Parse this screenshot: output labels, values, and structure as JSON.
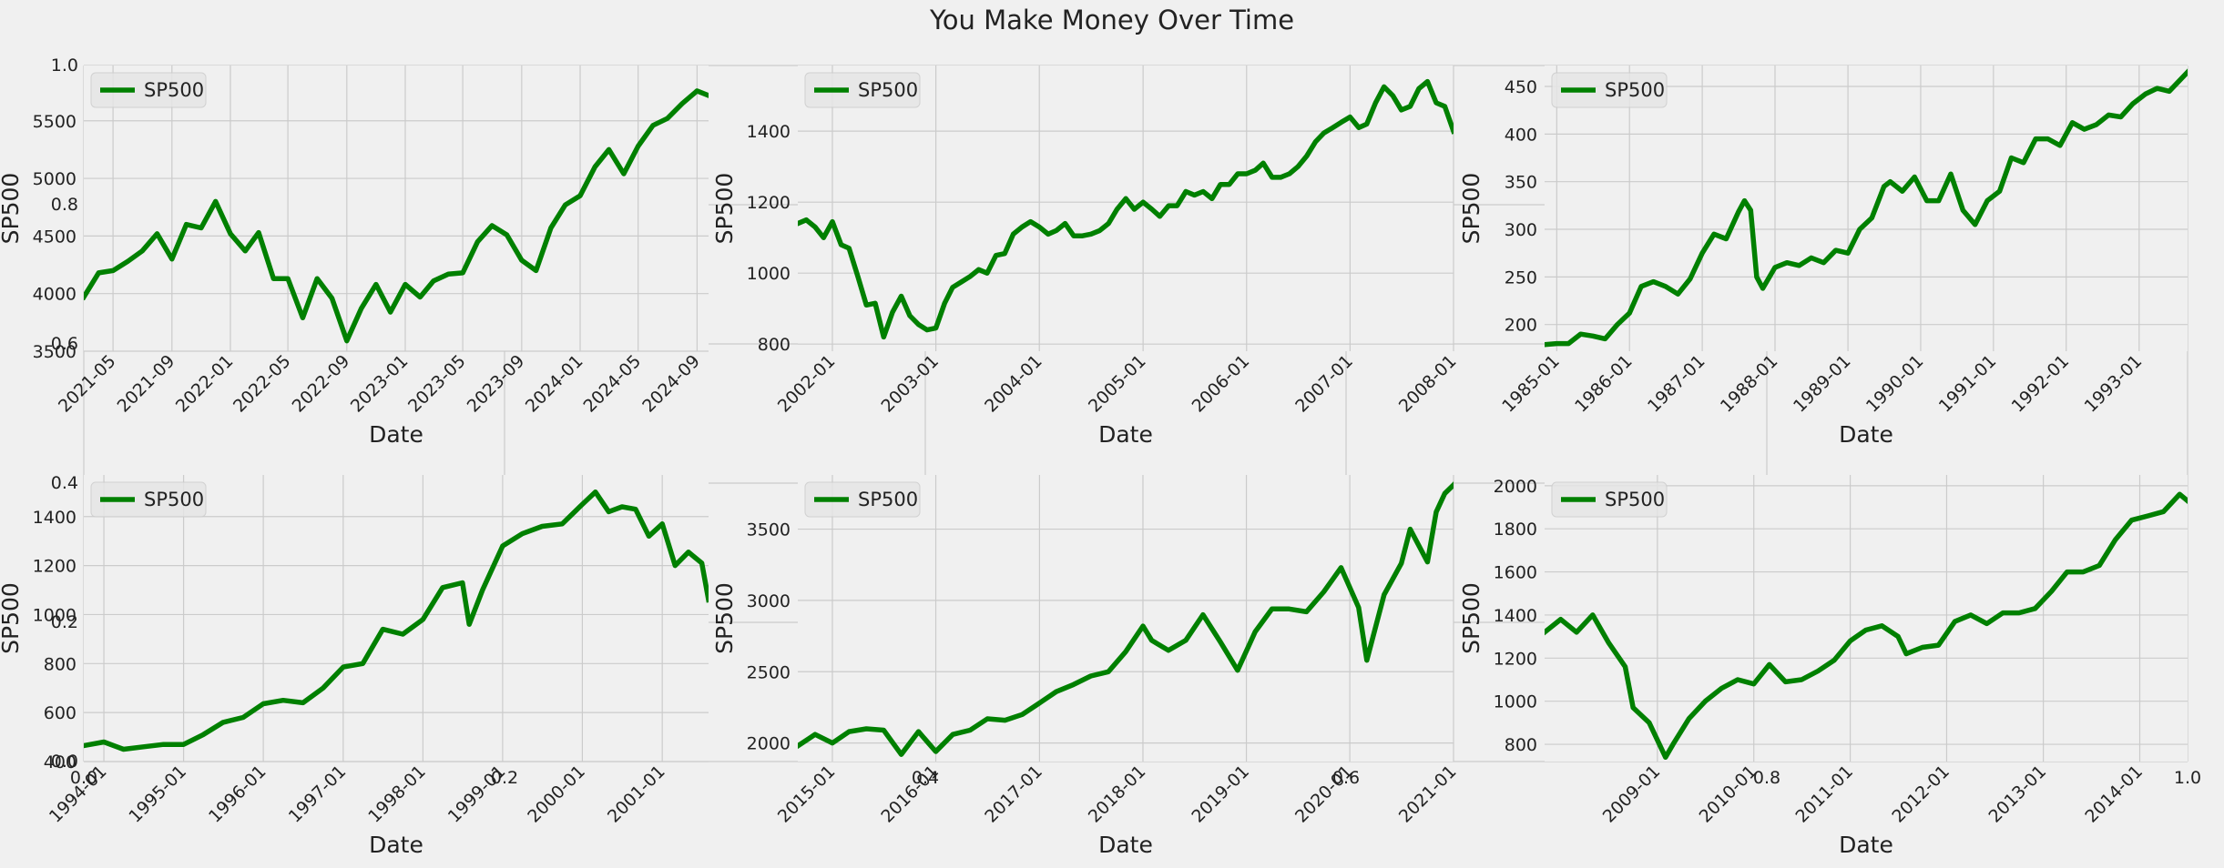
{
  "title": "You Make Money Over Time",
  "colors": {
    "background": "#f0f0f0",
    "grid": "#cbcbcb",
    "line": "#008000",
    "legend_bg": "#e6e6e6",
    "legend_border": "#cccccc"
  },
  "overlay_axes": {
    "x_ticks": [
      "0.0",
      "0.2",
      "0.4",
      "0.6",
      "0.8",
      "1.0"
    ],
    "y_ticks": [
      "0.0",
      "0.2",
      "0.4",
      "0.6",
      "0.8",
      "1.0"
    ]
  },
  "chart_data": [
    {
      "type": "line",
      "xlabel": "Date",
      "ylabel": "SP500",
      "xlim": [
        "2021-03-01",
        "2024-09-25"
      ],
      "ylim": [
        3500,
        5980
      ],
      "xticks": [
        "2021-05",
        "2021-09",
        "2022-01",
        "2022-05",
        "2022-09",
        "2023-01",
        "2023-05",
        "2023-09",
        "2024-01",
        "2024-05",
        "2024-09"
      ],
      "yticks": [
        3500,
        4000,
        4500,
        5000,
        5500
      ],
      "grid": true,
      "legend_loc": "upper left",
      "series": [
        {
          "name": "SP500",
          "x": [
            "2021-03-01",
            "2021-04-01",
            "2021-05-01",
            "2021-06-01",
            "2021-07-01",
            "2021-08-01",
            "2021-09-01",
            "2021-10-01",
            "2021-11-01",
            "2021-12-01",
            "2022-01-01",
            "2022-02-01",
            "2022-03-01",
            "2022-04-01",
            "2022-05-01",
            "2022-06-01",
            "2022-07-01",
            "2022-08-01",
            "2022-09-01",
            "2022-10-01",
            "2022-11-01",
            "2022-12-01",
            "2023-01-01",
            "2023-02-01",
            "2023-03-01",
            "2023-04-01",
            "2023-05-01",
            "2023-06-01",
            "2023-07-01",
            "2023-08-01",
            "2023-09-01",
            "2023-10-01",
            "2023-11-01",
            "2023-12-01",
            "2024-01-01",
            "2024-02-01",
            "2024-03-01",
            "2024-04-01",
            "2024-05-01",
            "2024-06-01",
            "2024-07-01",
            "2024-08-01",
            "2024-09-01",
            "2024-09-25"
          ],
          "y": [
            3970,
            4180,
            4200,
            4280,
            4370,
            4520,
            4300,
            4600,
            4570,
            4800,
            4520,
            4370,
            4530,
            4130,
            4130,
            3790,
            4130,
            3960,
            3590,
            3870,
            4080,
            3840,
            4080,
            3970,
            4110,
            4170,
            4180,
            4450,
            4590,
            4510,
            4290,
            4200,
            4570,
            4770,
            4850,
            5100,
            5250,
            5040,
            5280,
            5460,
            5520,
            5650,
            5760,
            5720
          ]
        }
      ]
    },
    {
      "type": "line",
      "xlabel": "Date",
      "ylabel": "SP500",
      "xlim": [
        "2001-09-01",
        "2008-01-01"
      ],
      "ylim": [
        780,
        1585
      ],
      "xticks": [
        "2002-01",
        "2003-01",
        "2004-01",
        "2005-01",
        "2006-01",
        "2007-01",
        "2008-01"
      ],
      "yticks": [
        800,
        1000,
        1200,
        1400
      ],
      "grid": true,
      "legend_loc": "upper left",
      "series": [
        {
          "name": "SP500",
          "x": [
            "2001-09-01",
            "2001-10-01",
            "2001-11-01",
            "2001-12-01",
            "2002-01-01",
            "2002-02-01",
            "2002-03-01",
            "2002-04-01",
            "2002-05-01",
            "2002-06-01",
            "2002-07-01",
            "2002-08-01",
            "2002-09-01",
            "2002-10-01",
            "2002-11-01",
            "2002-12-01",
            "2003-01-01",
            "2003-02-01",
            "2003-03-01",
            "2003-04-01",
            "2003-05-01",
            "2003-06-01",
            "2003-07-01",
            "2003-08-01",
            "2003-09-01",
            "2003-10-01",
            "2003-11-01",
            "2003-12-01",
            "2004-01-01",
            "2004-02-01",
            "2004-03-01",
            "2004-04-01",
            "2004-05-01",
            "2004-06-01",
            "2004-07-01",
            "2004-08-01",
            "2004-09-01",
            "2004-10-01",
            "2004-11-01",
            "2004-12-01",
            "2005-01-01",
            "2005-02-01",
            "2005-03-01",
            "2005-04-01",
            "2005-05-01",
            "2005-06-01",
            "2005-07-01",
            "2005-08-01",
            "2005-09-01",
            "2005-10-01",
            "2005-11-01",
            "2005-12-01",
            "2006-01-01",
            "2006-02-01",
            "2006-03-01",
            "2006-04-01",
            "2006-05-01",
            "2006-06-01",
            "2006-07-01",
            "2006-08-01",
            "2006-09-01",
            "2006-10-01",
            "2006-11-01",
            "2006-12-01",
            "2007-01-01",
            "2007-02-01",
            "2007-03-01",
            "2007-04-01",
            "2007-05-01",
            "2007-06-01",
            "2007-07-01",
            "2007-08-01",
            "2007-09-01",
            "2007-10-01",
            "2007-11-01",
            "2007-12-01",
            "2008-01-01"
          ],
          "y": [
            1140,
            1150,
            1130,
            1100,
            1145,
            1080,
            1070,
            990,
            910,
            915,
            820,
            890,
            935,
            880,
            855,
            840,
            845,
            915,
            960,
            975,
            990,
            1010,
            1000,
            1050,
            1055,
            1110,
            1130,
            1145,
            1130,
            1110,
            1120,
            1140,
            1105,
            1105,
            1110,
            1120,
            1140,
            1180,
            1210,
            1180,
            1200,
            1180,
            1160,
            1190,
            1190,
            1230,
            1220,
            1230,
            1210,
            1250,
            1250,
            1280,
            1280,
            1290,
            1310,
            1270,
            1270,
            1280,
            1300,
            1330,
            1370,
            1395,
            1410,
            1425,
            1440,
            1410,
            1420,
            1480,
            1525,
            1500,
            1460,
            1470,
            1520,
            1540,
            1480,
            1470,
            1400
          ]
        }
      ]
    },
    {
      "type": "line",
      "xlabel": "Date",
      "ylabel": "SP500",
      "xlim": [
        "1984-11-01",
        "1993-09-01"
      ],
      "ylim": [
        172,
        472
      ],
      "xticks": [
        "1985-01",
        "1986-01",
        "1987-01",
        "1988-01",
        "1989-01",
        "1990-01",
        "1991-01",
        "1992-01",
        "1993-01"
      ],
      "yticks": [
        200,
        250,
        300,
        350,
        400,
        450
      ],
      "grid": true,
      "legend_loc": "upper left",
      "series": [
        {
          "name": "SP500",
          "x": [
            "1984-11-01",
            "1985-01-01",
            "1985-03-01",
            "1985-05-01",
            "1985-07-01",
            "1985-09-01",
            "1985-11-01",
            "1986-01-01",
            "1986-03-01",
            "1986-05-01",
            "1986-07-01",
            "1986-09-01",
            "1986-11-01",
            "1987-01-01",
            "1987-03-01",
            "1987-05-01",
            "1987-07-01",
            "1987-08-01",
            "1987-09-01",
            "1987-10-01",
            "1987-11-01",
            "1988-01-01",
            "1988-03-01",
            "1988-05-01",
            "1988-07-01",
            "1988-09-01",
            "1988-11-01",
            "1989-01-01",
            "1989-03-01",
            "1989-05-01",
            "1989-07-01",
            "1989-08-01",
            "1989-10-01",
            "1989-12-01",
            "1990-02-01",
            "1990-04-01",
            "1990-06-01",
            "1990-08-01",
            "1990-10-01",
            "1990-12-01",
            "1991-02-01",
            "1991-04-01",
            "1991-06-01",
            "1991-08-01",
            "1991-10-01",
            "1991-12-01",
            "1992-02-01",
            "1992-04-01",
            "1992-06-01",
            "1992-08-01",
            "1992-10-01",
            "1992-12-01",
            "1993-02-01",
            "1993-04-01",
            "1993-06-01",
            "1993-09-01"
          ],
          "y": [
            179,
            180,
            180,
            190,
            188,
            185,
            200,
            212,
            240,
            245,
            240,
            232,
            248,
            275,
            295,
            290,
            318,
            330,
            320,
            250,
            238,
            260,
            265,
            262,
            270,
            265,
            278,
            275,
            300,
            312,
            345,
            350,
            340,
            355,
            330,
            330,
            358,
            320,
            305,
            330,
            340,
            375,
            370,
            395,
            395,
            388,
            412,
            405,
            410,
            420,
            418,
            432,
            442,
            448,
            445,
            465
          ]
        }
      ]
    },
    {
      "type": "line",
      "xlabel": "Date",
      "ylabel": "SP500",
      "xlim": [
        "1993-10-01",
        "2001-08-01"
      ],
      "ylim": [
        400,
        1570
      ],
      "xticks": [
        "1994-01",
        "1995-01",
        "1996-01",
        "1997-01",
        "1998-01",
        "1999-01",
        "2000-01",
        "2001-01"
      ],
      "yticks": [
        400,
        600,
        800,
        1000,
        1200,
        1400
      ],
      "grid": true,
      "legend_loc": "upper left",
      "series": [
        {
          "name": "SP500",
          "x": [
            "1993-10-01",
            "1994-01-01",
            "1994-04-01",
            "1994-07-01",
            "1994-10-01",
            "1995-01-01",
            "1995-04-01",
            "1995-07-01",
            "1995-10-01",
            "1996-01-01",
            "1996-04-01",
            "1996-07-01",
            "1996-10-01",
            "1997-01-01",
            "1997-04-01",
            "1997-07-01",
            "1997-10-01",
            "1998-01-01",
            "1998-04-01",
            "1998-07-01",
            "1998-08-01",
            "1998-10-01",
            "1999-01-01",
            "1999-04-01",
            "1999-07-01",
            "1999-10-01",
            "2000-01-01",
            "2000-03-01",
            "2000-05-01",
            "2000-07-01",
            "2000-09-01",
            "2000-11-01",
            "2001-01-01",
            "2001-03-01",
            "2001-05-01",
            "2001-07-01",
            "2001-08-01"
          ],
          "y": [
            465,
            480,
            450,
            460,
            470,
            470,
            510,
            560,
            580,
            636,
            650,
            640,
            700,
            786,
            800,
            940,
            920,
            980,
            1110,
            1130,
            960,
            1100,
            1280,
            1330,
            1360,
            1370,
            1450,
            1500,
            1420,
            1440,
            1430,
            1320,
            1370,
            1200,
            1255,
            1210,
            1060
          ]
        }
      ]
    },
    {
      "type": "line",
      "xlabel": "Date",
      "ylabel": "SP500",
      "xlim": [
        "2014-09-01",
        "2021-01-01"
      ],
      "ylim": [
        1870,
        3880
      ],
      "xticks": [
        "2015-01",
        "2016-01",
        "2017-01",
        "2018-01",
        "2019-01",
        "2020-01",
        "2021-01"
      ],
      "yticks": [
        2000,
        2500,
        3000,
        3500
      ],
      "grid": true,
      "legend_loc": "upper left",
      "series": [
        {
          "name": "SP500",
          "x": [
            "2014-09-01",
            "2014-11-01",
            "2015-01-01",
            "2015-03-01",
            "2015-05-01",
            "2015-07-01",
            "2015-09-01",
            "2015-11-01",
            "2016-01-01",
            "2016-03-01",
            "2016-05-01",
            "2016-07-01",
            "2016-09-01",
            "2016-11-01",
            "2017-01-01",
            "2017-03-01",
            "2017-05-01",
            "2017-07-01",
            "2017-09-01",
            "2017-11-01",
            "2018-01-01",
            "2018-02-01",
            "2018-04-01",
            "2018-06-01",
            "2018-08-01",
            "2018-10-01",
            "2018-12-01",
            "2019-02-01",
            "2019-04-01",
            "2019-06-01",
            "2019-08-01",
            "2019-10-01",
            "2019-12-01",
            "2020-02-01",
            "2020-03-01",
            "2020-05-01",
            "2020-07-01",
            "2020-08-01",
            "2020-10-01",
            "2020-11-01",
            "2020-12-01",
            "2021-01-01"
          ],
          "y": [
            1980,
            2060,
            2000,
            2080,
            2100,
            2090,
            1920,
            2080,
            1940,
            2060,
            2090,
            2170,
            2160,
            2200,
            2280,
            2360,
            2410,
            2470,
            2500,
            2640,
            2820,
            2720,
            2650,
            2720,
            2900,
            2710,
            2510,
            2780,
            2940,
            2940,
            2920,
            3060,
            3230,
            2950,
            2580,
            3040,
            3260,
            3500,
            3270,
            3620,
            3750,
            3810
          ]
        }
      ]
    },
    {
      "type": "line",
      "xlabel": "Date",
      "ylabel": "SP500",
      "xlim": [
        "2007-11-01",
        "2014-07-01"
      ],
      "ylim": [
        720,
        2050
      ],
      "xticks": [
        "2009-01",
        "2010-01",
        "2011-01",
        "2012-01",
        "2013-01",
        "2014-01"
      ],
      "yticks": [
        800,
        1000,
        1200,
        1400,
        1600,
        1800,
        2000
      ],
      "grid": true,
      "legend_loc": "upper left",
      "series": [
        {
          "name": "SP500",
          "x": [
            "2007-11-01",
            "2008-01-01",
            "2008-03-01",
            "2008-05-01",
            "2008-07-01",
            "2008-09-01",
            "2008-10-01",
            "2008-12-01",
            "2009-02-01",
            "2009-03-01",
            "2009-05-01",
            "2009-07-01",
            "2009-09-01",
            "2009-11-01",
            "2010-01-01",
            "2010-03-01",
            "2010-05-01",
            "2010-07-01",
            "2010-09-01",
            "2010-11-01",
            "2011-01-01",
            "2011-03-01",
            "2011-05-01",
            "2011-07-01",
            "2011-08-01",
            "2011-10-01",
            "2011-12-01",
            "2012-02-01",
            "2012-04-01",
            "2012-06-01",
            "2012-08-01",
            "2012-10-01",
            "2012-12-01",
            "2013-02-01",
            "2013-04-01",
            "2013-06-01",
            "2013-08-01",
            "2013-10-01",
            "2013-12-01",
            "2014-02-01",
            "2014-04-01",
            "2014-06-01",
            "2014-07-01"
          ],
          "y": [
            1320,
            1380,
            1320,
            1400,
            1270,
            1160,
            970,
            900,
            740,
            800,
            920,
            1000,
            1060,
            1100,
            1080,
            1170,
            1090,
            1100,
            1140,
            1190,
            1280,
            1330,
            1350,
            1300,
            1220,
            1250,
            1260,
            1370,
            1400,
            1360,
            1410,
            1410,
            1430,
            1510,
            1600,
            1600,
            1630,
            1750,
            1840,
            1860,
            1880,
            1960,
            1930
          ]
        }
      ]
    }
  ],
  "legend_label": "SP500"
}
